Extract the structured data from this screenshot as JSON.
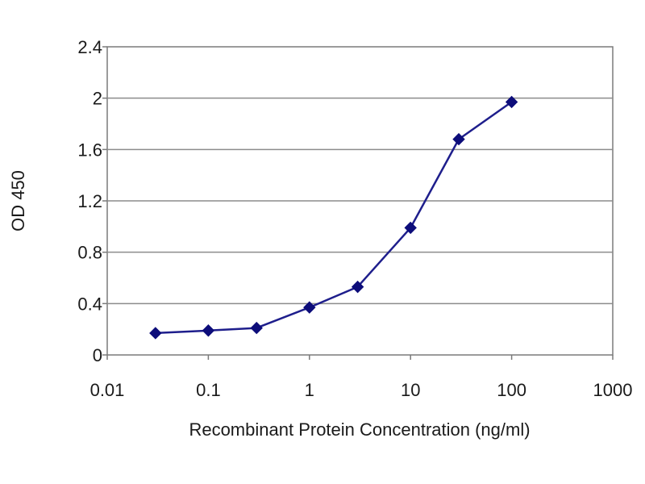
{
  "chart_data": {
    "type": "line",
    "xlabel": "Recombinant Protein Concentration (ng/ml)",
    "ylabel": "OD 450",
    "xscale": "log",
    "xlim": [
      0.01,
      1000
    ],
    "ylim": [
      0,
      2.4
    ],
    "xticks": [
      "0.01",
      "0.1",
      "1",
      "10",
      "100",
      "1000"
    ],
    "yticks": [
      "0",
      "0.4",
      "0.8",
      "1.2",
      "1.6",
      "2",
      "2.4"
    ],
    "grid": "horizontal",
    "series": [
      {
        "x": [
          0.03,
          0.1,
          0.3,
          1,
          3,
          10,
          30,
          100
        ],
        "y": [
          0.17,
          0.19,
          0.21,
          0.37,
          0.53,
          0.99,
          1.68,
          1.97
        ]
      }
    ],
    "colors": {
      "line": "#1e1e8c",
      "marker": "#0d0d7a",
      "grid": "#8c8c8c",
      "frame": "#7a7a7a"
    }
  }
}
